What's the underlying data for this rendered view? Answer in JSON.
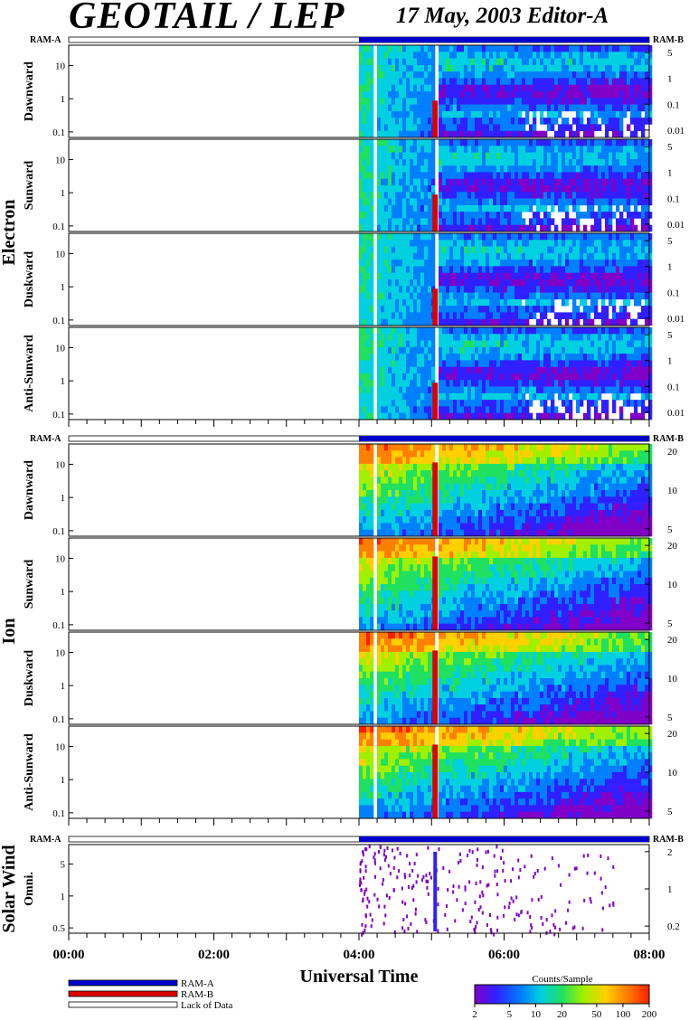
{
  "header": {
    "title": "GEOTAIL / LEP",
    "date": "17 May, 2003   Editor-A"
  },
  "colors": {
    "ram_a": "#0000cc",
    "ram_b": "#dd0000",
    "lack_of_data": "#ffffff",
    "scale": [
      "#8000c8",
      "#3020ff",
      "#0080ff",
      "#00d0e0",
      "#20e060",
      "#a0f000",
      "#ffd000",
      "#ff8000",
      "#ff2000"
    ]
  },
  "chart_data": {
    "type": "heatmap",
    "x_axis": {
      "label": "Universal Time",
      "ticks": [
        "00:00",
        "02:00",
        "04:00",
        "06:00",
        "08:00"
      ],
      "range_hours": [
        0,
        8
      ]
    },
    "data_start_hour": 4.0,
    "data_gap_hours": [
      4.16,
      4.2
    ],
    "ram_b_hour": 5.05,
    "groups": [
      {
        "name": "Electron",
        "ram_a_label": "RAM-A",
        "ram_b_label": "RAM-B",
        "panels": [
          {
            "label": "Dawnward",
            "left_ticks": [
              "10",
              "1",
              "0.1"
            ],
            "right_ticks": [
              "5",
              "1",
              "0.1",
              "0.01"
            ]
          },
          {
            "label": "Sunward",
            "left_ticks": [
              "10",
              "1",
              "0.1"
            ],
            "right_ticks": [
              "5",
              "1",
              "0.1",
              "0.01"
            ]
          },
          {
            "label": "Duskward",
            "left_ticks": [
              "10",
              "1",
              "0.1"
            ],
            "right_ticks": [
              "5",
              "1",
              "0.1",
              "0.01"
            ]
          },
          {
            "label": "Anti-Sunward",
            "left_ticks": [
              "10",
              "1",
              "0.1"
            ],
            "right_ticks": [
              "5",
              "1",
              "0.1",
              "0.01"
            ]
          }
        ]
      },
      {
        "name": "Ion",
        "ram_a_label": "RAM-A",
        "ram_b_label": "RAM-B",
        "panels": [
          {
            "label": "Dawnward",
            "left_ticks": [
              "10",
              "1",
              "0.1"
            ],
            "right_ticks": [
              "20",
              "10",
              "5"
            ]
          },
          {
            "label": "Sunward",
            "left_ticks": [
              "10",
              "1",
              "0.1"
            ],
            "right_ticks": [
              "20",
              "10",
              "5"
            ]
          },
          {
            "label": "Duskward",
            "left_ticks": [
              "10",
              "1",
              "0.1"
            ],
            "right_ticks": [
              "20",
              "10",
              "5"
            ]
          },
          {
            "label": "Anti-Sunward",
            "left_ticks": [
              "10",
              "1",
              "0.1"
            ],
            "right_ticks": [
              "20",
              "10",
              "5"
            ]
          }
        ]
      },
      {
        "name": "Solar Wind",
        "ram_a_label": "RAM-A",
        "ram_b_label": "RAM-B",
        "panels": [
          {
            "label": "Omni.",
            "left_ticks": [
              "5",
              "1",
              "0.5"
            ],
            "right_ticks": [
              "2",
              "1",
              "0.2"
            ]
          }
        ]
      }
    ],
    "legend": {
      "entries": [
        "RAM-A",
        "RAM-B",
        "Lack of Data"
      ],
      "colorbar_title": "Counts/Sample",
      "colorbar_ticks": [
        "2",
        "5",
        "10",
        "20",
        "50",
        "100",
        "200"
      ],
      "colorbar_range": [
        2,
        200
      ]
    }
  }
}
